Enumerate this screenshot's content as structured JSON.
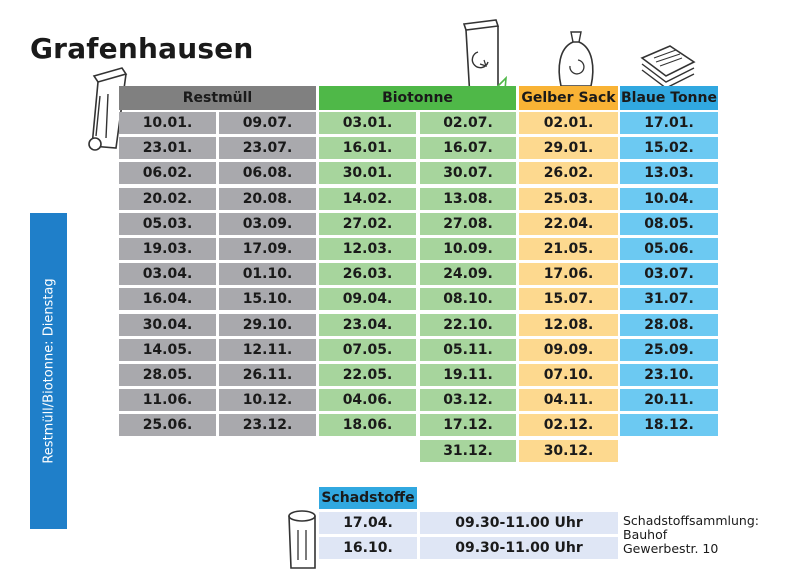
{
  "title": "Grafenhausen",
  "side_label": "Restmüll/Biotonne: Dienstag",
  "columns": [
    {
      "label": "Restmüll",
      "color": "#808080"
    },
    {
      "label": "Biotonne",
      "color": "#4fb848"
    },
    {
      "label": "Gelber Sack",
      "color": "#f9b335"
    },
    {
      "label": "Blaue Tonne",
      "color": "#31a8e0"
    }
  ],
  "restmuell": [
    [
      "10.01.",
      "09.07."
    ],
    [
      "23.01.",
      "23.07."
    ],
    [
      "06.02.",
      "06.08."
    ],
    [
      "20.02.",
      "20.08."
    ],
    [
      "05.03.",
      "03.09."
    ],
    [
      "19.03.",
      "17.09."
    ],
    [
      "03.04.",
      "01.10."
    ],
    [
      "16.04.",
      "15.10."
    ],
    [
      "30.04.",
      "29.10."
    ],
    [
      "14.05.",
      "12.11."
    ],
    [
      "28.05.",
      "26.11."
    ],
    [
      "11.06.",
      "10.12."
    ],
    [
      "25.06.",
      "23.12."
    ]
  ],
  "biotonne": [
    [
      "03.01.",
      "02.07."
    ],
    [
      "16.01.",
      "16.07."
    ],
    [
      "30.01.",
      "30.07."
    ],
    [
      "14.02.",
      "13.08."
    ],
    [
      "27.02.",
      "27.08."
    ],
    [
      "12.03.",
      "10.09."
    ],
    [
      "26.03.",
      "24.09."
    ],
    [
      "09.04.",
      "08.10."
    ],
    [
      "23.04.",
      "22.10."
    ],
    [
      "07.05.",
      "05.11."
    ],
    [
      "22.05.",
      "19.11."
    ],
    [
      "04.06.",
      "03.12."
    ],
    [
      "18.06.",
      "17.12."
    ],
    [
      "",
      "31.12."
    ]
  ],
  "gelber_sack": [
    "02.01.",
    "29.01.",
    "26.02.",
    "25.03.",
    "22.04.",
    "21.05.",
    "17.06.",
    "15.07.",
    "12.08.",
    "09.09.",
    "07.10.",
    "04.11.",
    "02.12.",
    "30.12."
  ],
  "blaue_tonne": [
    "17.01.",
    "15.02.",
    "13.03.",
    "10.04.",
    "08.05.",
    "05.06.",
    "03.07.",
    "31.07.",
    "28.08.",
    "25.09.",
    "23.10.",
    "20.11.",
    "18.12."
  ],
  "schadstoffe": {
    "header": "Schadstoffe",
    "header_color": "#31a8e0",
    "rows": [
      {
        "date": "17.04.",
        "time": "09.30-11.00 Uhr"
      },
      {
        "date": "16.10.",
        "time": "09.30-11.00 Uhr"
      }
    ],
    "info": [
      "Schadstoffsammlung:",
      "Bauhof",
      "Gewerbestr. 10"
    ]
  },
  "icons": [
    "waste-bin-icon",
    "bio-bin-icon",
    "yellow-sack-icon",
    "paper-stack-icon",
    "hazardous-bin-icon"
  ]
}
